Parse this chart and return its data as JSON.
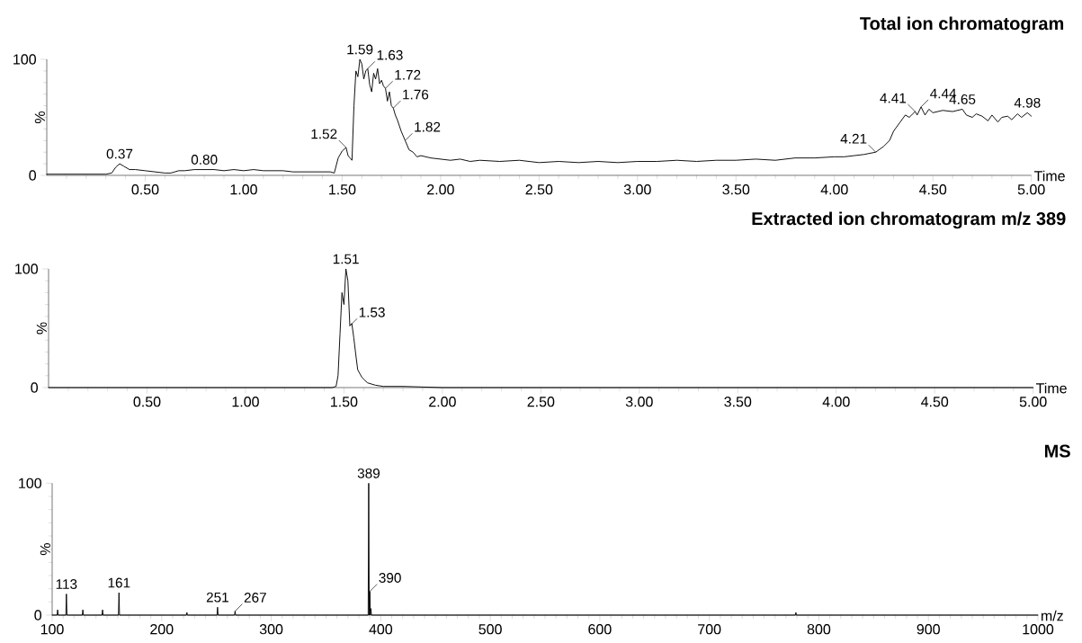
{
  "chart_data": [
    {
      "type": "line",
      "title": "Total ion chromatogram",
      "xlabel": "Time",
      "ylabel": "%",
      "xlim": [
        0,
        5
      ],
      "ylim": [
        0,
        100
      ],
      "xticks": [
        {
          "value": 0.1,
          "label": null
        },
        {
          "value": 0.2,
          "label": null
        },
        {
          "value": 0.3,
          "label": null
        },
        {
          "value": 0.4,
          "label": null
        },
        {
          "value": 0.5,
          "label": "0.50"
        },
        {
          "value": 0.6,
          "label": null
        },
        {
          "value": 0.7,
          "label": null
        },
        {
          "value": 0.8,
          "label": null
        },
        {
          "value": 0.9,
          "label": null
        },
        {
          "value": 1.0,
          "label": "1.00"
        },
        {
          "value": 1.1,
          "label": null
        },
        {
          "value": 1.2,
          "label": null
        },
        {
          "value": 1.3,
          "label": null
        },
        {
          "value": 1.4,
          "label": null
        },
        {
          "value": 1.5,
          "label": "1.50"
        },
        {
          "value": 1.6,
          "label": null
        },
        {
          "value": 1.7,
          "label": null
        },
        {
          "value": 1.8,
          "label": null
        },
        {
          "value": 1.9,
          "label": null
        },
        {
          "value": 2.0,
          "label": "2.00"
        },
        {
          "value": 2.1,
          "label": null
        },
        {
          "value": 2.2,
          "label": null
        },
        {
          "value": 2.3,
          "label": null
        },
        {
          "value": 2.4,
          "label": null
        },
        {
          "value": 2.5,
          "label": "2.50"
        },
        {
          "value": 2.6,
          "label": null
        },
        {
          "value": 2.7,
          "label": null
        },
        {
          "value": 2.8,
          "label": null
        },
        {
          "value": 2.9,
          "label": null
        },
        {
          "value": 3.0,
          "label": "3.00"
        },
        {
          "value": 3.1,
          "label": null
        },
        {
          "value": 3.2,
          "label": null
        },
        {
          "value": 3.3,
          "label": null
        },
        {
          "value": 3.4,
          "label": null
        },
        {
          "value": 3.5,
          "label": "3.50"
        },
        {
          "value": 3.6,
          "label": null
        },
        {
          "value": 3.7,
          "label": null
        },
        {
          "value": 3.8,
          "label": null
        },
        {
          "value": 3.9,
          "label": null
        },
        {
          "value": 4.0,
          "label": "4.00"
        },
        {
          "value": 4.1,
          "label": null
        },
        {
          "value": 4.2,
          "label": null
        },
        {
          "value": 4.3,
          "label": null
        },
        {
          "value": 4.4,
          "label": null
        },
        {
          "value": 4.5,
          "label": "4.50"
        },
        {
          "value": 4.6,
          "label": null
        },
        {
          "value": 4.7,
          "label": null
        },
        {
          "value": 4.8,
          "label": null
        },
        {
          "value": 4.9,
          "label": null
        },
        {
          "value": 5.0,
          "label": "5.00"
        }
      ],
      "yticks": [
        0,
        {
          "value": 10,
          "label": null
        },
        {
          "value": 20,
          "label": null
        },
        {
          "value": 30,
          "label": null
        },
        {
          "value": 40,
          "label": null
        },
        {
          "value": 50,
          "label": null
        },
        {
          "value": 60,
          "label": null
        },
        {
          "value": 70,
          "label": null
        },
        {
          "value": 80,
          "label": null
        },
        {
          "value": 90,
          "label": null
        },
        100
      ],
      "series": [
        {
          "color": "#000000",
          "x": [
            0,
            0.05,
            0.1,
            0.15,
            0.2,
            0.25,
            0.3,
            0.33,
            0.35,
            0.37,
            0.39,
            0.42,
            0.45,
            0.5,
            0.55,
            0.6,
            0.63,
            0.67,
            0.7,
            0.75,
            0.8,
            0.85,
            0.9,
            0.95,
            1.0,
            1.05,
            1.1,
            1.15,
            1.2,
            1.25,
            1.3,
            1.35,
            1.4,
            1.44,
            1.46,
            1.48,
            1.5,
            1.52,
            1.53,
            1.54,
            1.55,
            1.56,
            1.57,
            1.58,
            1.59,
            1.6,
            1.61,
            1.62,
            1.63,
            1.64,
            1.65,
            1.66,
            1.67,
            1.68,
            1.69,
            1.7,
            1.71,
            1.72,
            1.73,
            1.74,
            1.75,
            1.76,
            1.77,
            1.78,
            1.8,
            1.82,
            1.84,
            1.86,
            1.88,
            1.9,
            1.95,
            2.0,
            2.05,
            2.1,
            2.15,
            2.2,
            2.3,
            2.4,
            2.5,
            2.6,
            2.7,
            2.8,
            2.9,
            3.0,
            3.1,
            3.2,
            3.3,
            3.4,
            3.5,
            3.6,
            3.7,
            3.8,
            3.9,
            4.0,
            4.05,
            4.1,
            4.15,
            4.21,
            4.25,
            4.28,
            4.3,
            4.33,
            4.36,
            4.38,
            4.41,
            4.42,
            4.44,
            4.46,
            4.48,
            4.5,
            4.55,
            4.6,
            4.65,
            4.67,
            4.7,
            4.72,
            4.75,
            4.78,
            4.8,
            4.83,
            4.85,
            4.88,
            4.9,
            4.93,
            4.95,
            4.98,
            5.0
          ],
          "values": [
            1,
            1,
            1,
            1,
            1,
            1,
            1,
            2,
            7,
            10,
            8,
            5,
            5,
            4,
            3,
            2,
            2,
            4,
            4,
            5,
            5,
            5,
            4,
            5,
            4,
            5,
            4,
            4,
            4,
            3,
            3,
            3,
            3,
            3,
            2,
            15,
            21,
            24,
            17,
            15,
            13,
            60,
            90,
            85,
            100,
            96,
            83,
            90,
            92,
            78,
            72,
            88,
            83,
            92,
            79,
            82,
            77,
            75,
            64,
            72,
            60,
            58,
            52,
            48,
            38,
            30,
            22,
            20,
            16,
            17,
            15,
            14,
            13,
            14,
            12,
            13,
            12,
            13,
            11,
            12,
            11,
            12,
            11,
            12,
            12,
            13,
            12,
            13,
            13,
            14,
            13,
            15,
            15,
            16,
            16,
            17,
            18,
            20,
            25,
            30,
            38,
            45,
            52,
            50,
            55,
            52,
            59,
            52,
            57,
            54,
            56,
            55,
            57,
            52,
            50,
            53,
            51,
            47,
            52,
            46,
            50,
            51,
            48,
            53,
            50,
            54,
            51
          ]
        }
      ],
      "annotations": [
        {
          "text": "0.37",
          "x": 0.37,
          "y": 10
        },
        {
          "text": "0.80",
          "x": 0.8,
          "y": 5
        },
        {
          "text": "1.52",
          "x": 1.52,
          "y": 24
        },
        {
          "text": "1.59",
          "x": 1.59,
          "y": 100
        },
        {
          "text": "1.63",
          "x": 1.63,
          "y": 92
        },
        {
          "text": "1.72",
          "x": 1.72,
          "y": 75
        },
        {
          "text": "1.76",
          "x": 1.76,
          "y": 58
        },
        {
          "text": "1.82",
          "x": 1.82,
          "y": 30
        },
        {
          "text": "4.21",
          "x": 4.21,
          "y": 20
        },
        {
          "text": "4.41",
          "x": 4.41,
          "y": 55
        },
        {
          "text": "4.44",
          "x": 4.44,
          "y": 59
        },
        {
          "text": "4.65",
          "x": 4.65,
          "y": 57
        },
        {
          "text": "4.98",
          "x": 4.98,
          "y": 54
        }
      ]
    },
    {
      "type": "line",
      "title": "Extracted ion chromatogram m/z 389",
      "xlabel": "Time",
      "ylabel": "%",
      "xlim": [
        0,
        5
      ],
      "ylim": [
        0,
        100
      ],
      "xticks": [
        {
          "value": 0.1,
          "label": null
        },
        {
          "value": 0.2,
          "label": null
        },
        {
          "value": 0.3,
          "label": null
        },
        {
          "value": 0.4,
          "label": null
        },
        {
          "value": 0.5,
          "label": "0.50"
        },
        {
          "value": 0.6,
          "label": null
        },
        {
          "value": 0.7,
          "label": null
        },
        {
          "value": 0.8,
          "label": null
        },
        {
          "value": 0.9,
          "label": null
        },
        {
          "value": 1.0,
          "label": "1.00"
        },
        {
          "value": 1.1,
          "label": null
        },
        {
          "value": 1.2,
          "label": null
        },
        {
          "value": 1.3,
          "label": null
        },
        {
          "value": 1.4,
          "label": null
        },
        {
          "value": 1.5,
          "label": "1.50"
        },
        {
          "value": 1.6,
          "label": null
        },
        {
          "value": 1.7,
          "label": null
        },
        {
          "value": 1.8,
          "label": null
        },
        {
          "value": 1.9,
          "label": null
        },
        {
          "value": 2.0,
          "label": "2.00"
        },
        {
          "value": 2.1,
          "label": null
        },
        {
          "value": 2.2,
          "label": null
        },
        {
          "value": 2.3,
          "label": null
        },
        {
          "value": 2.4,
          "label": null
        },
        {
          "value": 2.5,
          "label": "2.50"
        },
        {
          "value": 2.6,
          "label": null
        },
        {
          "value": 2.7,
          "label": null
        },
        {
          "value": 2.8,
          "label": null
        },
        {
          "value": 2.9,
          "label": null
        },
        {
          "value": 3.0,
          "label": "3.00"
        },
        {
          "value": 3.1,
          "label": null
        },
        {
          "value": 3.2,
          "label": null
        },
        {
          "value": 3.3,
          "label": null
        },
        {
          "value": 3.4,
          "label": null
        },
        {
          "value": 3.5,
          "label": "3.50"
        },
        {
          "value": 3.6,
          "label": null
        },
        {
          "value": 3.7,
          "label": null
        },
        {
          "value": 3.8,
          "label": null
        },
        {
          "value": 3.9,
          "label": null
        },
        {
          "value": 4.0,
          "label": "4.00"
        },
        {
          "value": 4.1,
          "label": null
        },
        {
          "value": 4.2,
          "label": null
        },
        {
          "value": 4.3,
          "label": null
        },
        {
          "value": 4.4,
          "label": null
        },
        {
          "value": 4.5,
          "label": "4.50"
        },
        {
          "value": 4.6,
          "label": null
        },
        {
          "value": 4.7,
          "label": null
        },
        {
          "value": 4.8,
          "label": null
        },
        {
          "value": 4.9,
          "label": null
        },
        {
          "value": 5.0,
          "label": "5.00"
        }
      ],
      "yticks": [
        0,
        {
          "value": 10,
          "label": null
        },
        {
          "value": 20,
          "label": null
        },
        {
          "value": 30,
          "label": null
        },
        {
          "value": 40,
          "label": null
        },
        {
          "value": 50,
          "label": null
        },
        {
          "value": 60,
          "label": null
        },
        {
          "value": 70,
          "label": null
        },
        {
          "value": 80,
          "label": null
        },
        {
          "value": 90,
          "label": null
        },
        100
      ],
      "series": [
        {
          "color": "#000000",
          "x": [
            0,
            0.5,
            1.0,
            1.44,
            1.46,
            1.47,
            1.48,
            1.49,
            1.5,
            1.51,
            1.52,
            1.53,
            1.54,
            1.55,
            1.56,
            1.57,
            1.58,
            1.59,
            1.6,
            1.62,
            1.64,
            1.66,
            1.7,
            1.8,
            2.0,
            2.5,
            3.0,
            4.0,
            5.0
          ],
          "values": [
            0,
            0,
            0,
            0,
            1,
            10,
            45,
            80,
            70,
            100,
            90,
            52,
            54,
            42,
            28,
            15,
            12,
            9,
            7,
            4,
            3,
            2,
            1,
            1,
            0,
            0,
            0,
            0,
            0
          ]
        }
      ],
      "annotations": [
        {
          "text": "1.51",
          "x": 1.51,
          "y": 100
        },
        {
          "text": "1.53",
          "x": 1.53,
          "y": 52
        }
      ]
    },
    {
      "type": "line",
      "title": "MS",
      "xlabel": "m/z",
      "ylabel": "%",
      "xlim": [
        100,
        1000
      ],
      "ylim": [
        0,
        100
      ],
      "xticks": [
        100,
        {
          "value": 110,
          "label": null
        },
        {
          "value": 120,
          "label": null
        },
        {
          "value": 130,
          "label": null
        },
        {
          "value": 140,
          "label": null
        },
        {
          "value": 150,
          "label": null
        },
        {
          "value": 160,
          "label": null
        },
        {
          "value": 170,
          "label": null
        },
        {
          "value": 180,
          "label": null
        },
        {
          "value": 190,
          "label": null
        },
        200,
        {
          "value": 210,
          "label": null
        },
        {
          "value": 220,
          "label": null
        },
        {
          "value": 230,
          "label": null
        },
        {
          "value": 240,
          "label": null
        },
        {
          "value": 250,
          "label": null
        },
        {
          "value": 260,
          "label": null
        },
        {
          "value": 270,
          "label": null
        },
        {
          "value": 280,
          "label": null
        },
        {
          "value": 290,
          "label": null
        },
        300,
        {
          "value": 310,
          "label": null
        },
        {
          "value": 320,
          "label": null
        },
        {
          "value": 330,
          "label": null
        },
        {
          "value": 340,
          "label": null
        },
        {
          "value": 350,
          "label": null
        },
        {
          "value": 360,
          "label": null
        },
        {
          "value": 370,
          "label": null
        },
        {
          "value": 380,
          "label": null
        },
        {
          "value": 390,
          "label": null
        },
        400,
        {
          "value": 410,
          "label": null
        },
        {
          "value": 420,
          "label": null
        },
        {
          "value": 430,
          "label": null
        },
        {
          "value": 440,
          "label": null
        },
        {
          "value": 450,
          "label": null
        },
        {
          "value": 460,
          "label": null
        },
        {
          "value": 470,
          "label": null
        },
        {
          "value": 480,
          "label": null
        },
        {
          "value": 490,
          "label": null
        },
        500,
        {
          "value": 510,
          "label": null
        },
        {
          "value": 520,
          "label": null
        },
        {
          "value": 530,
          "label": null
        },
        {
          "value": 540,
          "label": null
        },
        {
          "value": 550,
          "label": null
        },
        {
          "value": 560,
          "label": null
        },
        {
          "value": 570,
          "label": null
        },
        {
          "value": 580,
          "label": null
        },
        {
          "value": 590,
          "label": null
        },
        600,
        {
          "value": 610,
          "label": null
        },
        {
          "value": 620,
          "label": null
        },
        {
          "value": 630,
          "label": null
        },
        {
          "value": 640,
          "label": null
        },
        {
          "value": 650,
          "label": null
        },
        {
          "value": 660,
          "label": null
        },
        {
          "value": 670,
          "label": null
        },
        {
          "value": 680,
          "label": null
        },
        {
          "value": 690,
          "label": null
        },
        700,
        {
          "value": 710,
          "label": null
        },
        {
          "value": 720,
          "label": null
        },
        {
          "value": 730,
          "label": null
        },
        {
          "value": 740,
          "label": null
        },
        {
          "value": 750,
          "label": null
        },
        {
          "value": 760,
          "label": null
        },
        {
          "value": 770,
          "label": null
        },
        {
          "value": 780,
          "label": null
        },
        {
          "value": 790,
          "label": null
        },
        800,
        {
          "value": 810,
          "label": null
        },
        {
          "value": 820,
          "label": null
        },
        {
          "value": 830,
          "label": null
        },
        {
          "value": 840,
          "label": null
        },
        {
          "value": 850,
          "label": null
        },
        {
          "value": 860,
          "label": null
        },
        {
          "value": 870,
          "label": null
        },
        {
          "value": 880,
          "label": null
        },
        {
          "value": 890,
          "label": null
        },
        900,
        {
          "value": 910,
          "label": null
        },
        {
          "value": 920,
          "label": null
        },
        {
          "value": 930,
          "label": null
        },
        {
          "value": 940,
          "label": null
        },
        {
          "value": 950,
          "label": null
        },
        {
          "value": 960,
          "label": null
        },
        {
          "value": 970,
          "label": null
        },
        {
          "value": 980,
          "label": null
        },
        {
          "value": 990,
          "label": null
        },
        1000
      ],
      "yticks": [
        0,
        {
          "value": 10,
          "label": null
        },
        {
          "value": 20,
          "label": null
        },
        {
          "value": 30,
          "label": null
        },
        {
          "value": 40,
          "label": null
        },
        {
          "value": 50,
          "label": null
        },
        {
          "value": 60,
          "label": null
        },
        {
          "value": 70,
          "label": null
        },
        {
          "value": 80,
          "label": null
        },
        {
          "value": 90,
          "label": null
        },
        100
      ],
      "series": [
        {
          "color": "#000000",
          "x": [
            100,
            104.5,
            105,
            105.5,
            112.5,
            113,
            113.5,
            127.5,
            128,
            128.5,
            145.5,
            146,
            146.5,
            160.5,
            161,
            161.5,
            222.5,
            223,
            223.5,
            250.5,
            251,
            251.5,
            266.5,
            267,
            267.5,
            388.5,
            389,
            389.5,
            390,
            390.5,
            391,
            391.5,
            778.5,
            779,
            779.5,
            1000
          ],
          "values": [
            0,
            0,
            4,
            0,
            0,
            16,
            0,
            0,
            4,
            0,
            0,
            4,
            0,
            0,
            17,
            0,
            0,
            2,
            0,
            0,
            6,
            0,
            0,
            3,
            0,
            0,
            100,
            0,
            18,
            0,
            5,
            0,
            0,
            2,
            0,
            0
          ]
        }
      ],
      "annotations": [
        {
          "text": "113",
          "x": 113,
          "y": 16
        },
        {
          "text": "161",
          "x": 161,
          "y": 17
        },
        {
          "text": "251",
          "x": 251,
          "y": 6
        },
        {
          "text": "267",
          "x": 267,
          "y": 3
        },
        {
          "text": "389",
          "x": 389,
          "y": 100
        },
        {
          "text": "390",
          "x": 390,
          "y": 18
        }
      ]
    }
  ]
}
